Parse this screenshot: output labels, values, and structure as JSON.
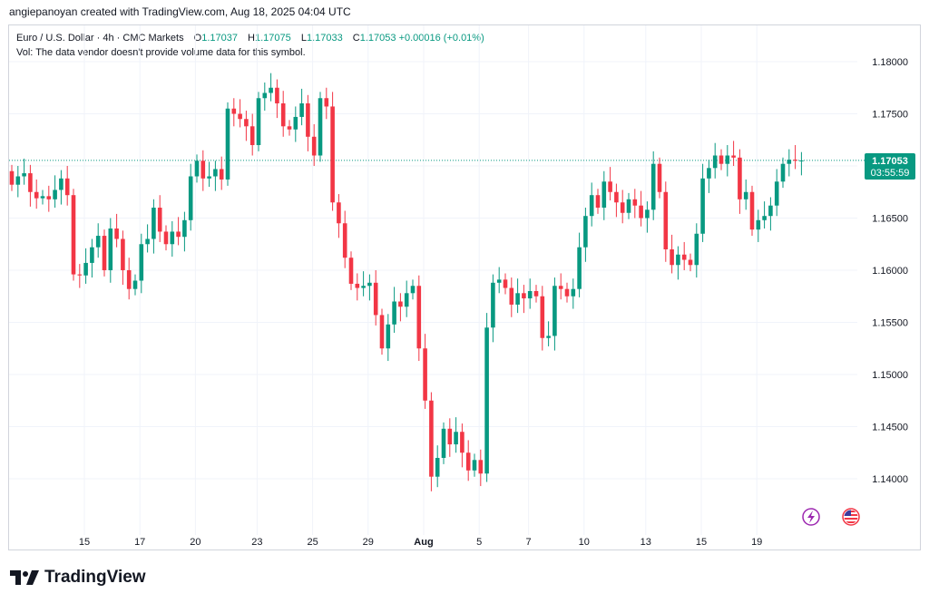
{
  "header": {
    "credit": "angiepanoyan created with TradingView.com, Aug 18, 2025 04:04 UTC"
  },
  "legend": {
    "symbol": "Euro / U.S. Dollar · 4h · CMC Markets",
    "open_label": "O",
    "open": "1.17037",
    "high_label": "H",
    "high": "1.17075",
    "low_label": "L",
    "low": "1.17033",
    "close_label": "C",
    "close": "1.17053",
    "change": "+0.00016 (+0.01%)",
    "vol_note": "Vol: The data vendor doesn't provide volume data for this symbol."
  },
  "price_badge": {
    "price": "1.17053",
    "countdown": "03:55:59"
  },
  "brand": {
    "name": "TradingView"
  },
  "icons": {
    "flash": "lightning-icon",
    "flag": "us-flag-icon"
  },
  "colors": {
    "up": "#089981",
    "down": "#f23645",
    "badge": "#089981",
    "grid": "#f0f3fa",
    "events_icon": "#9c27b0"
  },
  "chart_data": {
    "type": "candlestick",
    "interval": "4h",
    "ylim": [
      1.136,
      1.1825
    ],
    "y_ticks": [
      "1.18000",
      "1.17500",
      "1.17000",
      "1.16500",
      "1.16000",
      "1.15500",
      "1.15000",
      "1.14500",
      "1.14000"
    ],
    "y_tick_values": [
      1.18,
      1.175,
      1.17,
      1.165,
      1.16,
      1.155,
      1.15,
      1.145,
      1.14
    ],
    "x_ticks": [
      "15",
      "17",
      "20",
      "23",
      "25",
      "29",
      "Aug",
      "5",
      "7",
      "10",
      "13",
      "15",
      "19"
    ],
    "x_tick_index": [
      5,
      14,
      23,
      33,
      42,
      51,
      60,
      69,
      77,
      86,
      96,
      105,
      114
    ],
    "last_price": 1.17053,
    "grid": true,
    "closes": [
      1.1682,
      1.169,
      1.1693,
      1.1675,
      1.1669,
      1.1671,
      1.1668,
      1.1677,
      1.1688,
      1.1672,
      1.1596,
      1.1595,
      1.1607,
      1.1622,
      1.1633,
      1.16,
      1.164,
      1.163,
      1.16,
      1.1582,
      1.159,
      1.1625,
      1.163,
      1.166,
      1.1637,
      1.1625,
      1.1637,
      1.1632,
      1.1648,
      1.169,
      1.1705,
      1.1688,
      1.169,
      1.1697,
      1.1687,
      1.1755,
      1.175,
      1.1745,
      1.1738,
      1.172,
      1.1765,
      1.177,
      1.1775,
      1.176,
      1.1738,
      1.1735,
      1.1747,
      1.176,
      1.1728,
      1.171,
      1.1765,
      1.1757,
      1.1665,
      1.1645,
      1.1612,
      1.1587,
      1.1583,
      1.1585,
      1.1588,
      1.1557,
      1.1525,
      1.1548,
      1.157,
      1.1565,
      1.1578,
      1.1585,
      1.1525,
      1.1475,
      1.1402,
      1.142,
      1.1448,
      1.1433,
      1.1445,
      1.1425,
      1.1408,
      1.1418,
      1.1405,
      1.1545,
      1.1588,
      1.1591,
      1.1583,
      1.1567,
      1.1578,
      1.1573,
      1.158,
      1.1575,
      1.1535,
      1.1537,
      1.1585,
      1.1582,
      1.1575,
      1.1582,
      1.1622,
      1.1652,
      1.1672,
      1.166,
      1.1685,
      1.1675,
      1.1665,
      1.1655,
      1.1668,
      1.1662,
      1.165,
      1.1658,
      1.1702,
      1.1675,
      1.162,
      1.1605,
      1.1615,
      1.161,
      1.1605,
      1.1635,
      1.1688,
      1.1698,
      1.171,
      1.1702,
      1.171,
      1.1708,
      1.1668,
      1.1675,
      1.1639,
      1.1648,
      1.1652,
      1.1662,
      1.1685,
      1.1702,
      1.1706,
      1.1705,
      1.17053
    ]
  }
}
